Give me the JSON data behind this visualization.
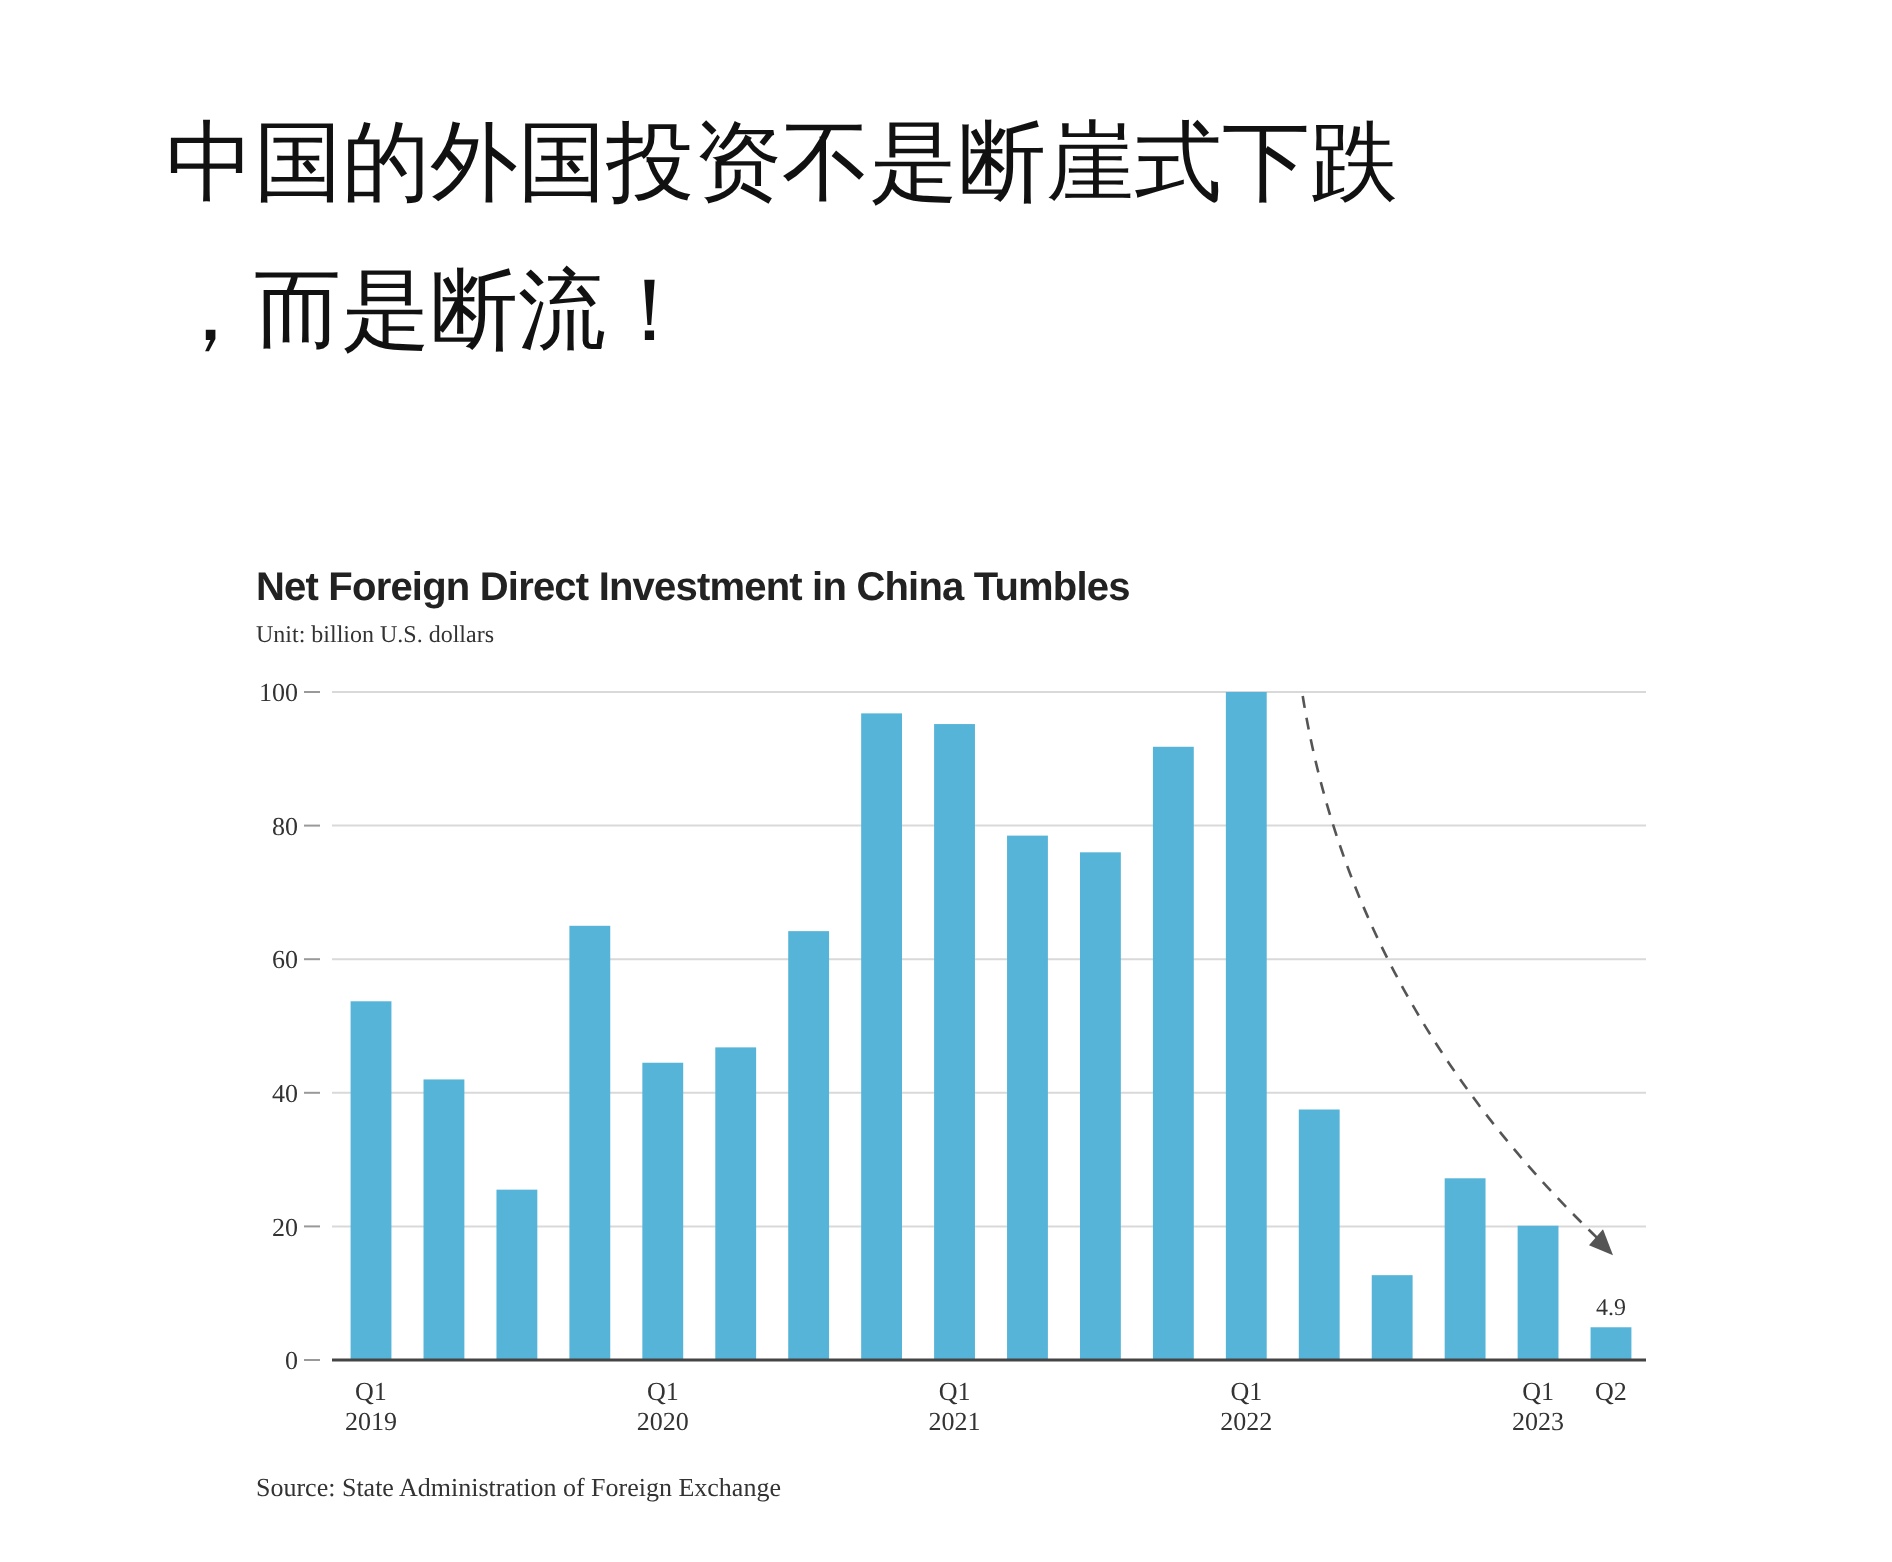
{
  "chart_data": {
    "type": "bar",
    "title": "中国的外国投资不是断崖式下跌，而是断流！",
    "subtitle": "Net Foreign Direct Investment in China Tumbles",
    "ylabel": "Unit: billion U.S. dollars",
    "categories": [
      "Q1\n2019",
      null,
      null,
      null,
      "Q1\n2020",
      null,
      null,
      null,
      "Q1\n2021",
      null,
      null,
      null,
      "Q1\n2022",
      null,
      null,
      null,
      "Q1\n2023",
      "Q2"
    ],
    "values": [
      53.7,
      42,
      25.5,
      65,
      44.5,
      46.8,
      64.2,
      96.8,
      95.2,
      78.5,
      76,
      91.8,
      100,
      37.5,
      12.7,
      27.2,
      20.1,
      4.9
    ],
    "value_labels": [
      null,
      null,
      null,
      null,
      null,
      null,
      null,
      null,
      null,
      null,
      null,
      null,
      null,
      null,
      null,
      null,
      null,
      "4.9"
    ],
    "color": "#55b4d8",
    "ylim": [
      0,
      100
    ],
    "yticks": [
      0,
      20,
      40,
      60,
      80,
      100
    ],
    "grid": "y",
    "annotations": [
      "Source: State Administration of Foreign Exchange"
    ]
  }
}
